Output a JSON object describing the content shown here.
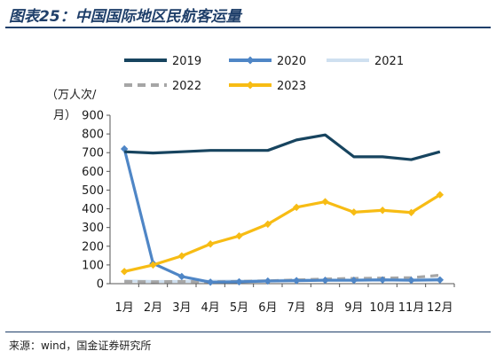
{
  "figure": {
    "title": "图表25：中国国际地区民航客运量",
    "source": "来源：wind，国金证券研究所"
  },
  "chart_data": {
    "type": "line",
    "title": "图表25：中国国际地区民航客运量",
    "ylabel": "（万人次/月）",
    "xlabel": "",
    "categories": [
      "1月",
      "2月",
      "3月",
      "4月",
      "5月",
      "6月",
      "7月",
      "8月",
      "9月",
      "10月",
      "11月",
      "12月"
    ],
    "yticks": [
      0,
      100,
      200,
      300,
      400,
      500,
      600,
      700,
      800,
      900
    ],
    "ylim": [
      0,
      900
    ],
    "grid": false,
    "legend_position": "top",
    "series": [
      {
        "name": "2019",
        "color": "#17445f",
        "dash": "solid",
        "marker": "none",
        "values": [
          705,
          698,
          705,
          712,
          712,
          712,
          768,
          795,
          678,
          678,
          663,
          705
        ]
      },
      {
        "name": "2020",
        "color": "#4f86c6",
        "dash": "solid",
        "marker": "diamond",
        "values": [
          720,
          108,
          38,
          8,
          10,
          14,
          16,
          18,
          18,
          20,
          18,
          20
        ]
      },
      {
        "name": "2021",
        "color": "#cfe0f0",
        "dash": "solid",
        "marker": "none",
        "values": [
          15,
          12,
          12,
          14,
          15,
          16,
          20,
          20,
          20,
          22,
          22,
          25
        ]
      },
      {
        "name": "2022",
        "color": "#a6a6a6",
        "dash": "dashed",
        "marker": "none",
        "values": [
          12,
          10,
          12,
          10,
          12,
          15,
          20,
          25,
          28,
          30,
          32,
          45
        ]
      },
      {
        "name": "2023",
        "color": "#f7bc14",
        "dash": "solid",
        "marker": "diamond",
        "values": [
          65,
          100,
          148,
          212,
          255,
          318,
          408,
          438,
          382,
          392,
          380,
          475
        ]
      }
    ]
  }
}
